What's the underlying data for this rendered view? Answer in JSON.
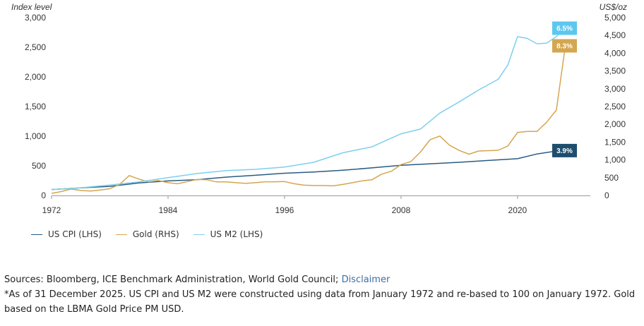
{
  "chart_data": {
    "type": "line",
    "title": "",
    "ylabel_left": "Index level",
    "ylabel_right": "US$/oz",
    "xlim": [
      1972,
      2027.5
    ],
    "ylim_left": [
      0,
      3000
    ],
    "ylim_right": [
      0,
      5000
    ],
    "x_ticks": [
      1972,
      1984,
      1996,
      2008,
      2020
    ],
    "y_ticks_left": [
      0,
      500,
      1000,
      1500,
      2000,
      2500,
      3000
    ],
    "y_ticks_left_labels": [
      "0",
      "500",
      "1,000",
      "1,500",
      "2,000",
      "2,500",
      "3,000"
    ],
    "y_ticks_right": [
      0,
      500,
      1000,
      1500,
      2000,
      2500,
      3000,
      3500,
      4000,
      4500,
      5000
    ],
    "y_ticks_right_labels": [
      "0",
      "500",
      "1,000",
      "1,500",
      "2,000",
      "2,500",
      "3,000",
      "3,500",
      "4,000",
      "4,500",
      "5,000"
    ],
    "grid": false,
    "series": [
      {
        "name": "US CPI (LHS)",
        "axis": "left",
        "color": "#2a5b84",
        "end_label": "3.9%",
        "x": [
          1972,
          1975,
          1978,
          1981,
          1984,
          1987,
          1990,
          1993,
          1996,
          1999,
          2002,
          2005,
          2008,
          2011,
          2014,
          2017,
          2020,
          2022,
          2025
        ],
        "values": [
          100,
          128,
          154,
          211,
          245,
          267,
          310,
          340,
          375,
          395,
          425,
          465,
          510,
          535,
          560,
          590,
          620,
          700,
          775
        ]
      },
      {
        "name": "Gold (RHS)",
        "axis": "right",
        "color": "#d4a650",
        "end_label": "8.3%",
        "x": [
          1972,
          1973,
          1974,
          1975,
          1976,
          1977,
          1978,
          1979,
          1980,
          1981,
          1982,
          1983,
          1984,
          1985,
          1986,
          1987,
          1988,
          1989,
          1990,
          1991,
          1992,
          1993,
          1994,
          1995,
          1996,
          1997,
          1998,
          1999,
          2000,
          2001,
          2002,
          2003,
          2004,
          2005,
          2006,
          2007,
          2008,
          2009,
          2010,
          2011,
          2012,
          2013,
          2014,
          2015,
          2016,
          2017,
          2018,
          2019,
          2020,
          2021,
          2022,
          2023,
          2024,
          2025
        ],
        "values": [
          60,
          110,
          180,
          140,
          125,
          150,
          190,
          310,
          560,
          460,
          380,
          420,
          360,
          330,
          390,
          450,
          440,
          380,
          380,
          360,
          340,
          360,
          385,
          385,
          390,
          330,
          290,
          280,
          280,
          270,
          310,
          360,
          410,
          440,
          600,
          680,
          870,
          950,
          1220,
          1570,
          1670,
          1410,
          1265,
          1160,
          1250,
          1260,
          1270,
          1390,
          1770,
          1800,
          1800,
          2060,
          2400,
          4350
        ]
      },
      {
        "name": "US M2 (LHS)",
        "axis": "left",
        "color": "#7dcfee",
        "end_label": "6.5%",
        "x": [
          1972,
          1975,
          1978,
          1981,
          1984,
          1987,
          1990,
          1993,
          1996,
          1999,
          2002,
          2005,
          2008,
          2010,
          2012,
          2014,
          2016,
          2018,
          2019,
          2020,
          2021,
          2022,
          2023,
          2024,
          2025
        ],
        "values": [
          100,
          130,
          175,
          230,
          300,
          370,
          420,
          440,
          480,
          560,
          720,
          820,
          1040,
          1120,
          1390,
          1580,
          1780,
          1960,
          2200,
          2680,
          2650,
          2560,
          2570,
          2680,
          2840
        ]
      }
    ]
  },
  "legend": {
    "items": [
      "US CPI (LHS)",
      "Gold (RHS)",
      "US M2 (LHS)"
    ]
  },
  "notes": {
    "sources_prefix": "Sources: Bloomberg, ICE Benchmark Administration, World Gold Council;",
    "disclaimer_link": "Disclaimer",
    "footnote": "*As of 31 December 2025. US CPI and US M2 were constructed using data from January 1972 and re-based to 100 on January 1972. Gold based on the LBMA Gold Price PM USD."
  }
}
